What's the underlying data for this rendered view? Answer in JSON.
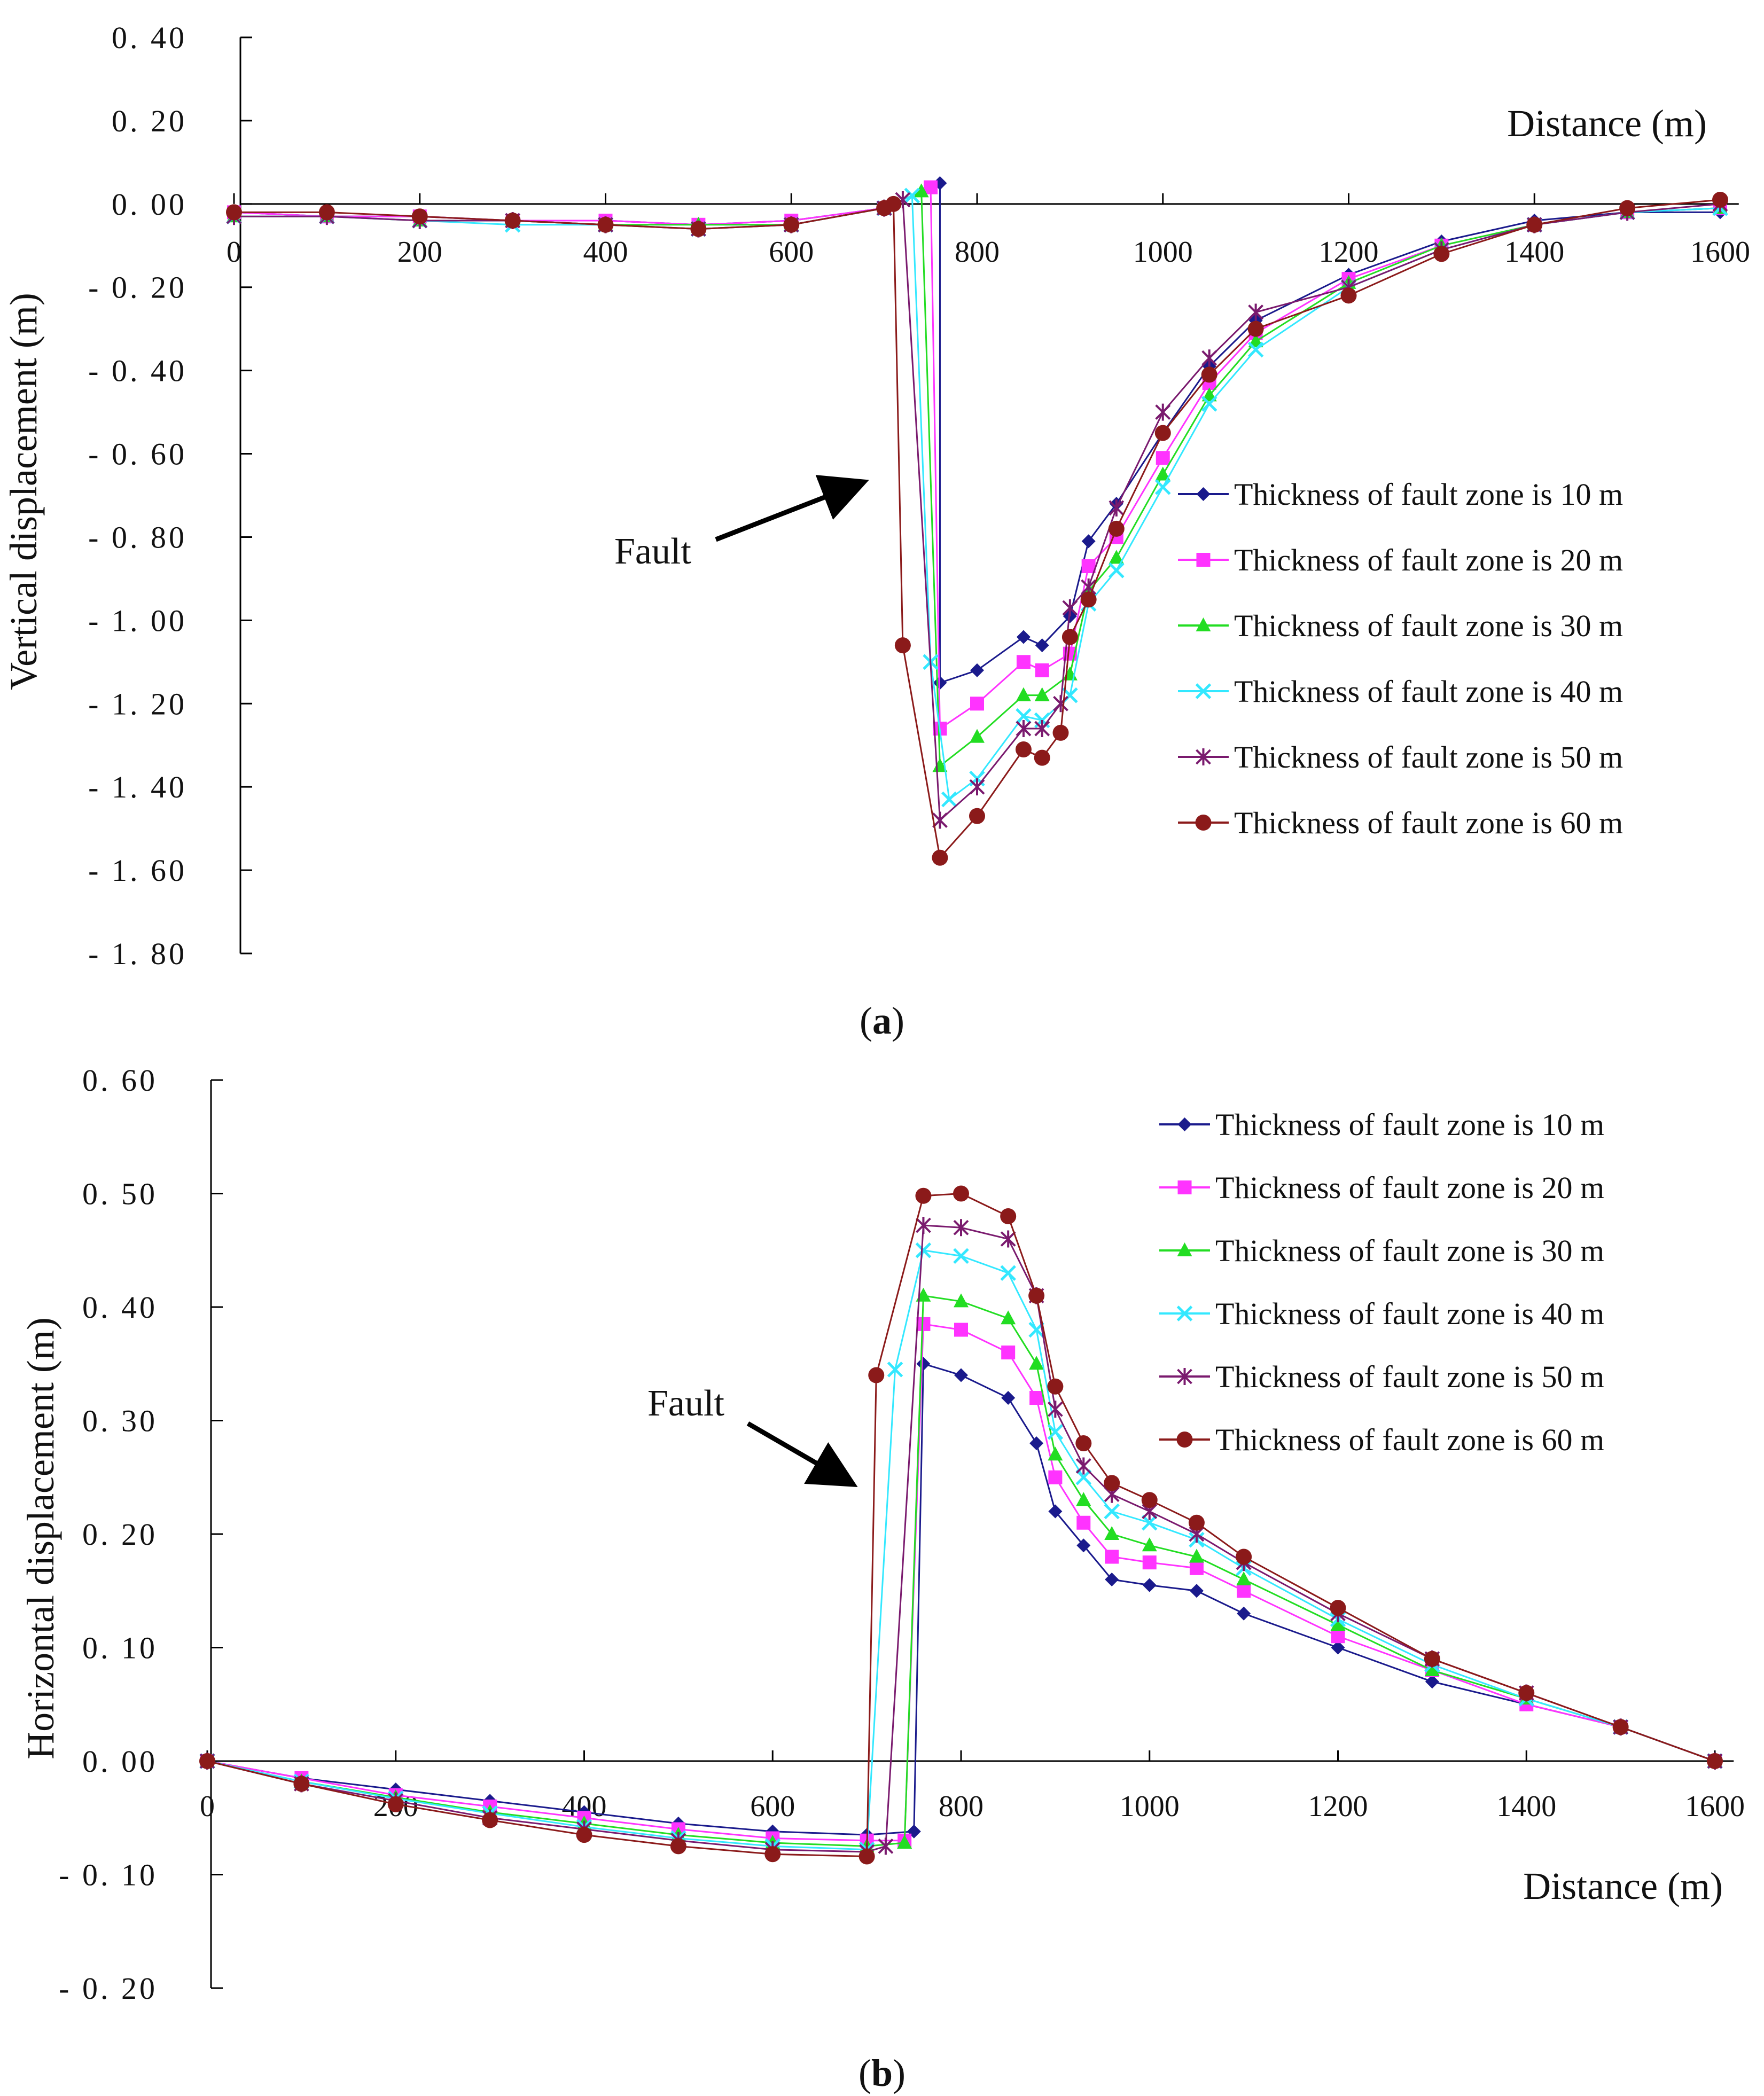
{
  "figure": {
    "panel_a_label": "a",
    "panel_b_label": "b",
    "annotation": "Fault"
  },
  "chart_data": [
    {
      "type": "line",
      "panel": "a",
      "ylabel": "Vertical displacement (m)",
      "xlabel": "Distance (m)",
      "xlim": [
        0,
        1620
      ],
      "ylim": [
        -1.8,
        0.4
      ],
      "x_ticks": [
        0,
        200,
        400,
        600,
        800,
        1000,
        1200,
        1400,
        1600
      ],
      "x_tick_labels": [
        "0",
        "200",
        "400",
        "600",
        "800",
        "1000",
        "1200",
        "1400",
        "1600"
      ],
      "y_ticks": [
        0.4,
        0.2,
        0.0,
        -0.2,
        -0.4,
        -0.6,
        -0.8,
        -1.0,
        -1.2,
        -1.4,
        -1.6,
        -1.8
      ],
      "y_tick_labels": [
        "0. 40",
        "0. 20",
        "0. 00",
        "- 0. 20",
        "- 0. 40",
        "- 0. 60",
        "- 0. 80",
        "- 1. 00",
        "- 1. 20",
        "- 1. 40",
        "- 1. 60",
        "- 1. 80"
      ],
      "legend_position": "right",
      "series": [
        {
          "name": "Thickness of fault zone is 10 m",
          "color": "#1a1a8c",
          "marker": "diamond",
          "x": [
            0,
            100,
            200,
            300,
            400,
            500,
            600,
            700,
            760,
            760,
            800,
            850,
            870,
            900,
            920,
            950,
            1000,
            1050,
            1100,
            1200,
            1300,
            1400,
            1500,
            1600
          ],
          "y": [
            -0.02,
            -0.03,
            -0.03,
            -0.04,
            -0.04,
            -0.05,
            -0.04,
            -0.01,
            0.05,
            -1.15,
            -1.12,
            -1.04,
            -1.06,
            -0.99,
            -0.81,
            -0.72,
            -0.55,
            -0.39,
            -0.28,
            -0.17,
            -0.09,
            -0.04,
            -0.02,
            -0.02
          ]
        },
        {
          "name": "Thickness of fault zone is 20 m",
          "color": "#ff33ff",
          "marker": "square",
          "x": [
            0,
            100,
            200,
            300,
            400,
            500,
            600,
            700,
            750,
            760,
            800,
            850,
            870,
            900,
            920,
            950,
            1000,
            1050,
            1100,
            1200,
            1300,
            1400,
            1500,
            1600
          ],
          "y": [
            -0.02,
            -0.03,
            -0.03,
            -0.04,
            -0.04,
            -0.05,
            -0.04,
            -0.01,
            0.04,
            -1.26,
            -1.2,
            -1.1,
            -1.12,
            -1.08,
            -0.87,
            -0.8,
            -0.61,
            -0.43,
            -0.31,
            -0.18,
            -0.1,
            -0.05,
            -0.02,
            -0.01
          ]
        },
        {
          "name": "Thickness of fault zone is 30 m",
          "color": "#22dd22",
          "marker": "triangle",
          "x": [
            0,
            100,
            200,
            300,
            400,
            500,
            600,
            700,
            740,
            760,
            800,
            850,
            870,
            900,
            920,
            950,
            1000,
            1050,
            1100,
            1200,
            1300,
            1400,
            1500,
            1600
          ],
          "y": [
            -0.03,
            -0.03,
            -0.04,
            -0.04,
            -0.05,
            -0.05,
            -0.05,
            -0.01,
            0.03,
            -1.35,
            -1.28,
            -1.18,
            -1.18,
            -1.13,
            -0.93,
            -0.85,
            -0.65,
            -0.46,
            -0.33,
            -0.19,
            -0.1,
            -0.05,
            -0.02,
            -0.01
          ]
        },
        {
          "name": "Thickness of fault zone is 40 m",
          "color": "#33e8ff",
          "marker": "x",
          "x": [
            0,
            100,
            200,
            300,
            400,
            500,
            600,
            700,
            730,
            750,
            770,
            800,
            850,
            870,
            900,
            920,
            950,
            1000,
            1050,
            1100,
            1200,
            1300,
            1400,
            1500,
            1600
          ],
          "y": [
            -0.03,
            -0.03,
            -0.04,
            -0.05,
            -0.05,
            -0.06,
            -0.05,
            -0.01,
            0.02,
            -1.1,
            -1.43,
            -1.38,
            -1.23,
            -1.24,
            -1.18,
            -0.96,
            -0.88,
            -0.68,
            -0.48,
            -0.35,
            -0.2,
            -0.11,
            -0.05,
            -0.02,
            -0.01
          ]
        },
        {
          "name": "Thickness of fault zone is 50 m",
          "color": "#7a1a6e",
          "marker": "star",
          "x": [
            0,
            100,
            200,
            300,
            400,
            500,
            600,
            700,
            720,
            760,
            800,
            850,
            870,
            890,
            900,
            920,
            950,
            1000,
            1050,
            1100,
            1200,
            1300,
            1400,
            1500,
            1600
          ],
          "y": [
            -0.03,
            -0.03,
            -0.04,
            -0.04,
            -0.05,
            -0.06,
            -0.05,
            -0.01,
            0.01,
            -1.48,
            -1.4,
            -1.26,
            -1.26,
            -1.2,
            -0.97,
            -0.92,
            -0.73,
            -0.5,
            -0.37,
            -0.26,
            -0.2,
            -0.11,
            -0.05,
            -0.02,
            0.0
          ]
        },
        {
          "name": "Thickness of fault zone is 60 m",
          "color": "#8b1a1a",
          "marker": "circle",
          "x": [
            0,
            100,
            200,
            300,
            400,
            500,
            600,
            700,
            710,
            720,
            760,
            800,
            850,
            870,
            890,
            900,
            920,
            950,
            1000,
            1050,
            1100,
            1200,
            1300,
            1400,
            1500,
            1600
          ],
          "y": [
            -0.02,
            -0.02,
            -0.03,
            -0.04,
            -0.05,
            -0.06,
            -0.05,
            -0.01,
            0.0,
            -1.06,
            -1.57,
            -1.47,
            -1.31,
            -1.33,
            -1.27,
            -1.04,
            -0.95,
            -0.78,
            -0.55,
            -0.41,
            -0.3,
            -0.22,
            -0.12,
            -0.05,
            -0.01,
            0.01
          ]
        }
      ]
    },
    {
      "type": "line",
      "panel": "b",
      "ylabel": "Horizontal displacement (m)",
      "xlabel": "Distance (m)",
      "xlim": [
        0,
        1620
      ],
      "ylim": [
        -0.2,
        0.6
      ],
      "x_ticks": [
        0,
        200,
        400,
        600,
        800,
        1000,
        1200,
        1400,
        1600
      ],
      "x_tick_labels": [
        "0",
        "200",
        "400",
        "600",
        "800",
        "1000",
        "1200",
        "1400",
        "1600"
      ],
      "y_ticks": [
        0.6,
        0.5,
        0.4,
        0.3,
        0.2,
        0.1,
        0.0,
        -0.1,
        -0.2
      ],
      "y_tick_labels": [
        "0. 60",
        "0. 50",
        "0. 40",
        "0. 30",
        "0. 20",
        "0. 10",
        "0. 00",
        "- 0. 10",
        "- 0. 20"
      ],
      "legend_position": "top-right",
      "series": [
        {
          "name": "Thickness of fault zone is 10 m",
          "color": "#1a1a8c",
          "marker": "diamond",
          "x": [
            0,
            100,
            200,
            300,
            400,
            500,
            600,
            700,
            750,
            760,
            800,
            850,
            880,
            900,
            930,
            960,
            1000,
            1050,
            1100,
            1200,
            1300,
            1400,
            1500,
            1600
          ],
          "y": [
            0.0,
            -0.015,
            -0.025,
            -0.035,
            -0.045,
            -0.055,
            -0.062,
            -0.065,
            -0.062,
            0.35,
            0.34,
            0.32,
            0.28,
            0.22,
            0.19,
            0.16,
            0.155,
            0.15,
            0.13,
            0.1,
            0.07,
            0.05,
            0.03,
            0.0
          ]
        },
        {
          "name": "Thickness of fault zone is 20 m",
          "color": "#ff33ff",
          "marker": "square",
          "x": [
            0,
            100,
            200,
            300,
            400,
            500,
            600,
            700,
            740,
            760,
            800,
            850,
            880,
            900,
            930,
            960,
            1000,
            1050,
            1100,
            1200,
            1300,
            1400,
            1500,
            1600
          ],
          "y": [
            0.0,
            -0.015,
            -0.03,
            -0.04,
            -0.05,
            -0.06,
            -0.068,
            -0.07,
            -0.07,
            0.385,
            0.38,
            0.36,
            0.32,
            0.25,
            0.21,
            0.18,
            0.175,
            0.17,
            0.15,
            0.11,
            0.08,
            0.05,
            0.03,
            0.0
          ]
        },
        {
          "name": "Thickness of fault zone is 30 m",
          "color": "#22dd22",
          "marker": "triangle",
          "x": [
            0,
            100,
            200,
            300,
            400,
            500,
            600,
            700,
            740,
            760,
            800,
            850,
            880,
            900,
            930,
            960,
            1000,
            1050,
            1100,
            1200,
            1300,
            1400,
            1500,
            1600
          ],
          "y": [
            0.0,
            -0.018,
            -0.032,
            -0.045,
            -0.055,
            -0.065,
            -0.072,
            -0.075,
            -0.072,
            0.41,
            0.405,
            0.39,
            0.35,
            0.27,
            0.23,
            0.2,
            0.19,
            0.18,
            0.16,
            0.12,
            0.08,
            0.055,
            0.03,
            0.0
          ]
        },
        {
          "name": "Thickness of fault zone is 40 m",
          "color": "#33e8ff",
          "marker": "x",
          "x": [
            0,
            100,
            200,
            300,
            400,
            500,
            600,
            700,
            730,
            760,
            800,
            850,
            880,
            900,
            930,
            960,
            1000,
            1050,
            1100,
            1200,
            1300,
            1400,
            1500,
            1600
          ],
          "y": [
            0.0,
            -0.018,
            -0.033,
            -0.046,
            -0.058,
            -0.068,
            -0.075,
            -0.078,
            0.345,
            0.45,
            0.445,
            0.43,
            0.38,
            0.29,
            0.25,
            0.22,
            0.21,
            0.195,
            0.17,
            0.125,
            0.085,
            0.055,
            0.03,
            0.0
          ]
        },
        {
          "name": "Thickness of fault zone is 50 m",
          "color": "#7a1a6e",
          "marker": "star",
          "x": [
            0,
            100,
            200,
            300,
            400,
            500,
            600,
            700,
            720,
            760,
            800,
            850,
            880,
            900,
            930,
            960,
            1000,
            1050,
            1100,
            1200,
            1300,
            1400,
            1500,
            1600
          ],
          "y": [
            0.0,
            -0.02,
            -0.035,
            -0.05,
            -0.06,
            -0.07,
            -0.078,
            -0.08,
            -0.075,
            0.472,
            0.47,
            0.46,
            0.41,
            0.31,
            0.26,
            0.235,
            0.22,
            0.2,
            0.175,
            0.13,
            0.09,
            0.06,
            0.03,
            0.0
          ]
        },
        {
          "name": "Thickness of fault zone is 60 m",
          "color": "#8b1a1a",
          "marker": "circle",
          "x": [
            0,
            100,
            200,
            300,
            400,
            500,
            600,
            700,
            710,
            760,
            800,
            850,
            880,
            900,
            930,
            960,
            1000,
            1050,
            1100,
            1200,
            1300,
            1400,
            1500,
            1600
          ],
          "y": [
            0.0,
            -0.02,
            -0.038,
            -0.052,
            -0.065,
            -0.075,
            -0.082,
            -0.084,
            0.34,
            0.498,
            0.5,
            0.48,
            0.41,
            0.33,
            0.28,
            0.245,
            0.23,
            0.21,
            0.18,
            0.135,
            0.09,
            0.06,
            0.03,
            0.0
          ]
        }
      ]
    }
  ]
}
